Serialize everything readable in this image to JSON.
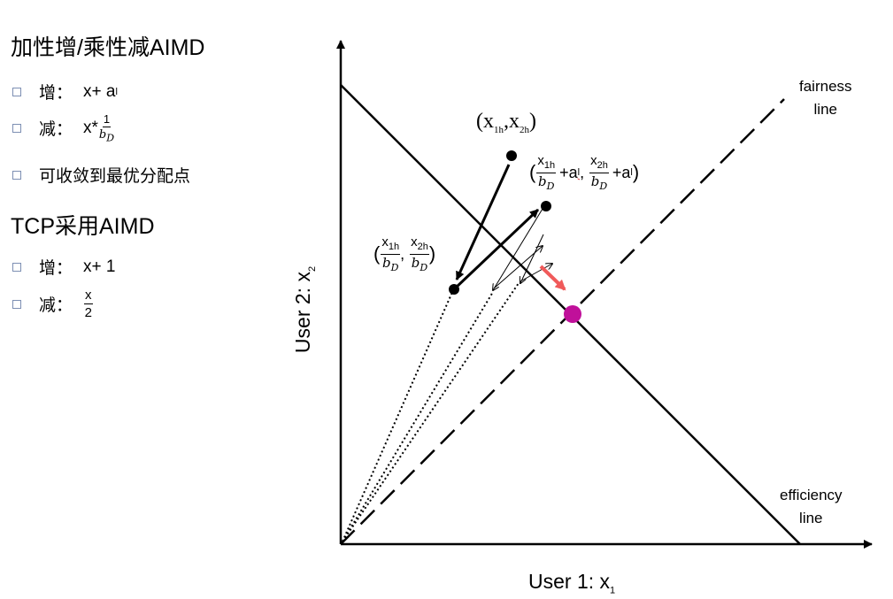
{
  "left_panel": {
    "section1_title": "加性增/乘性减AIMD",
    "section1_items": [
      {
        "head": "增：",
        "expr": "x+ a",
        "sub": "l"
      },
      {
        "head": "减：",
        "expr": "x*",
        "frac_num": "1",
        "frac_den": "b",
        "frac_den_sub": "D"
      },
      {
        "head": "可收敛到最优分配点"
      }
    ],
    "section2_title": "TCP采用AIMD",
    "section2_items": [
      {
        "head": "增：",
        "expr": "x+ 1"
      },
      {
        "head": "减：",
        "frac_num": "x",
        "frac_den": "2"
      }
    ]
  },
  "diagram": {
    "x_axis_label": "User 1: x",
    "x_axis_label_sub": "1",
    "y_axis_label": "User 2: x",
    "y_axis_label_sub": "2",
    "fairness_label": [
      "fairness",
      "line"
    ],
    "efficiency_label": [
      "efficiency",
      "line"
    ],
    "point_h_label": {
      "text1": "(x",
      "sub1": "1h",
      "text2": ",x",
      "sub2": "2h",
      "text3": ")"
    },
    "point_increase_label": {
      "num1": "x",
      "num1_sub": "1h",
      "den1": "b",
      "den1_sub": "D",
      "add1": "+a",
      "add1_sub": "l",
      "num2": "x",
      "num2_sub": "2h",
      "den2": "b",
      "den2_sub": "D",
      "add2": "+a",
      "add2_sub": "l"
    },
    "point_decrease_label": {
      "num1": "x",
      "num1_sub": "1h",
      "den1": "b",
      "den1_sub": "D",
      "num2": "x",
      "num2_sub": "2h",
      "den2": "b",
      "den2_sub": "D"
    },
    "colors": {
      "optimal_point": "#c0109a",
      "convergence_arrow": "#f05a5a",
      "axes": "#000000"
    }
  }
}
